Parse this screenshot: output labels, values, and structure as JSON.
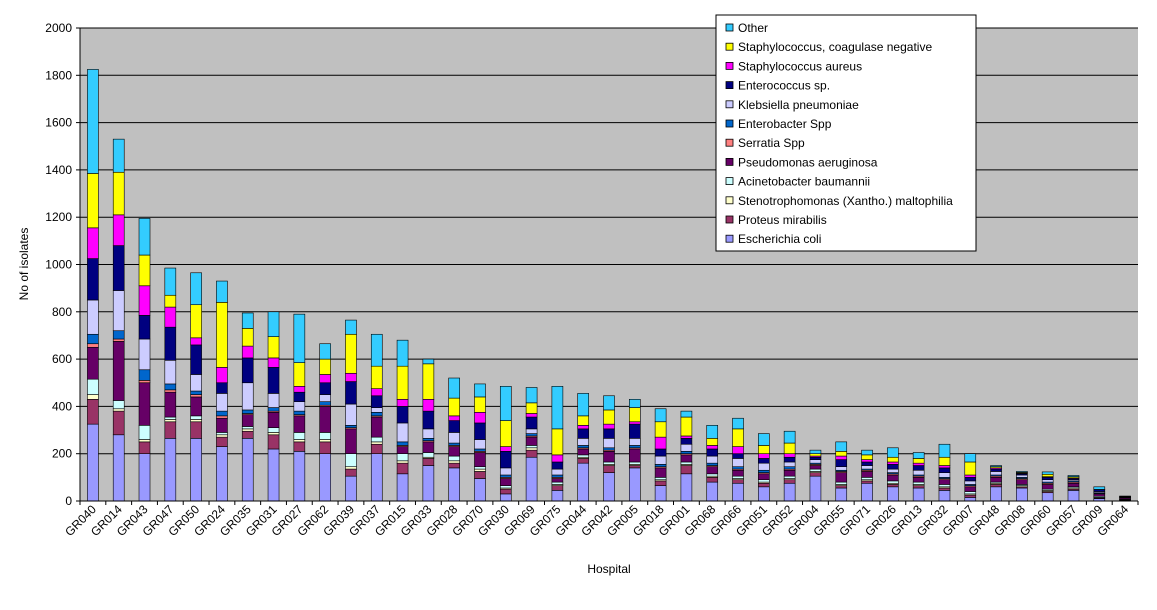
{
  "chart_data": {
    "type": "bar",
    "stacked": true,
    "xlabel": "Hospital",
    "ylabel": "No of isolates",
    "ylim": [
      0,
      2000
    ],
    "yticks": [
      0,
      200,
      400,
      600,
      800,
      1000,
      1200,
      1400,
      1600,
      1800,
      2000
    ],
    "grid": true,
    "legend_position": "top-right",
    "plot_background": "#c0c0c0",
    "categories": [
      "GR040",
      "GR014",
      "GR043",
      "GR047",
      "GR050",
      "GR024",
      "GR035",
      "GR031",
      "GR027",
      "GR062",
      "GR039",
      "GR037",
      "GR015",
      "GR033",
      "GR028",
      "GR070",
      "GR030",
      "GR069",
      "GR075",
      "GR044",
      "GR042",
      "GR005",
      "GR018",
      "GR001",
      "GR068",
      "GR066",
      "GR051",
      "GR052",
      "GR004",
      "GR055",
      "GR071",
      "GR026",
      "GR013",
      "GR032",
      "GR007",
      "GR048",
      "GR008",
      "GR060",
      "GR057",
      "GR009",
      "GR064"
    ],
    "series": [
      {
        "name": "Escherichia coli",
        "color": "#9999ff",
        "values": [
          325,
          280,
          200,
          265,
          265,
          230,
          265,
          220,
          210,
          200,
          105,
          200,
          115,
          150,
          140,
          95,
          30,
          185,
          45,
          160,
          120,
          140,
          65,
          115,
          80,
          75,
          60,
          75,
          105,
          55,
          75,
          60,
          55,
          45,
          15,
          60,
          55,
          35,
          45,
          10,
          3
        ]
      },
      {
        "name": "Proteus mirabilis",
        "color": "#993366",
        "values": [
          105,
          100,
          50,
          70,
          70,
          40,
          30,
          60,
          40,
          50,
          30,
          40,
          45,
          30,
          20,
          30,
          20,
          30,
          20,
          20,
          30,
          10,
          20,
          35,
          20,
          15,
          15,
          15,
          15,
          10,
          10,
          10,
          10,
          10,
          10,
          10,
          5,
          5,
          5,
          3,
          2
        ]
      },
      {
        "name": "Stenotrophomonas (Xantho.) maltophilia",
        "color": "#ffffcc",
        "values": [
          20,
          10,
          10,
          10,
          10,
          10,
          10,
          10,
          10,
          10,
          10,
          10,
          10,
          5,
          10,
          10,
          5,
          10,
          5,
          5,
          5,
          5,
          5,
          5,
          5,
          5,
          5,
          5,
          5,
          5,
          5,
          5,
          5,
          5,
          5,
          5,
          5,
          5,
          5,
          2,
          1
        ]
      },
      {
        "name": "Acinetobacter baumannii",
        "color": "#ccffff",
        "values": [
          65,
          35,
          60,
          10,
          15,
          10,
          10,
          20,
          30,
          30,
          55,
          20,
          30,
          20,
          20,
          10,
          10,
          10,
          10,
          10,
          10,
          10,
          10,
          10,
          10,
          10,
          10,
          10,
          10,
          10,
          10,
          10,
          10,
          10,
          10,
          5,
          5,
          5,
          5,
          5,
          1
        ]
      },
      {
        "name": "Pseudomonas aeruginosa",
        "color": "#660066",
        "values": [
          135,
          250,
          180,
          105,
          80,
          60,
          50,
          65,
          70,
          110,
          105,
          85,
          30,
          45,
          40,
          60,
          30,
          35,
          15,
          25,
          45,
          55,
          40,
          30,
          30,
          25,
          25,
          25,
          15,
          40,
          25,
          25,
          20,
          20,
          20,
          20,
          20,
          20,
          15,
          10,
          5
        ]
      },
      {
        "name": "Serratia Spp",
        "color": "#ff8080",
        "values": [
          15,
          10,
          10,
          10,
          10,
          10,
          5,
          5,
          5,
          5,
          5,
          5,
          5,
          5,
          5,
          5,
          5,
          5,
          5,
          5,
          5,
          5,
          5,
          5,
          5,
          5,
          5,
          5,
          5,
          5,
          5,
          5,
          5,
          5,
          5,
          5,
          5,
          5,
          5,
          2,
          1
        ]
      },
      {
        "name": "Enterobacter Spp",
        "color": "#0066cc",
        "values": [
          40,
          35,
          45,
          25,
          15,
          20,
          15,
          15,
          15,
          15,
          10,
          15,
          15,
          10,
          10,
          10,
          10,
          10,
          10,
          10,
          10,
          10,
          10,
          10,
          10,
          10,
          10,
          10,
          5,
          5,
          5,
          5,
          5,
          5,
          5,
          5,
          5,
          5,
          5,
          3,
          1
        ]
      },
      {
        "name": "Klebsiella pneumoniae",
        "color": "#ccccff",
        "values": [
          145,
          170,
          130,
          100,
          70,
          75,
          115,
          60,
          40,
          30,
          90,
          20,
          80,
          40,
          45,
          40,
          30,
          20,
          25,
          30,
          40,
          30,
          35,
          30,
          30,
          35,
          30,
          20,
          15,
          15,
          15,
          15,
          20,
          20,
          15,
          15,
          10,
          10,
          5,
          5,
          2
        ]
      },
      {
        "name": "Enterococcus sp.",
        "color": "#000080",
        "values": [
          175,
          190,
          100,
          140,
          125,
          45,
          105,
          110,
          40,
          50,
          95,
          50,
          70,
          75,
          50,
          70,
          70,
          50,
          30,
          40,
          40,
          60,
          30,
          25,
          30,
          20,
          20,
          20,
          10,
          30,
          15,
          20,
          20,
          20,
          15,
          10,
          5,
          10,
          5,
          8,
          2
        ]
      },
      {
        "name": "Staphylococcus aureus",
        "color": "#ff00ff",
        "values": [
          130,
          130,
          125,
          85,
          30,
          65,
          50,
          40,
          25,
          35,
          35,
          30,
          30,
          50,
          20,
          45,
          20,
          15,
          30,
          15,
          20,
          10,
          50,
          10,
          15,
          30,
          20,
          15,
          5,
          15,
          10,
          10,
          10,
          10,
          10,
          5,
          3,
          3,
          3,
          1,
          1
        ]
      },
      {
        "name": "Staphylococcus, coagulase negative",
        "color": "#ffff00",
        "values": [
          230,
          180,
          130,
          50,
          140,
          275,
          75,
          90,
          100,
          65,
          165,
          95,
          140,
          150,
          75,
          65,
          110,
          45,
          110,
          40,
          60,
          60,
          65,
          80,
          30,
          75,
          35,
          45,
          10,
          20,
          20,
          20,
          20,
          35,
          55,
          5,
          3,
          10,
          5,
          0,
          0
        ]
      },
      {
        "name": "Other",
        "color": "#33ccff",
        "values": [
          440,
          140,
          155,
          115,
          135,
          90,
          65,
          105,
          205,
          65,
          60,
          135,
          110,
          20,
          85,
          55,
          145,
          65,
          180,
          95,
          60,
          35,
          55,
          25,
          55,
          45,
          50,
          50,
          15,
          40,
          20,
          40,
          25,
          55,
          35,
          5,
          4,
          10,
          5,
          11,
          2
        ]
      }
    ]
  }
}
